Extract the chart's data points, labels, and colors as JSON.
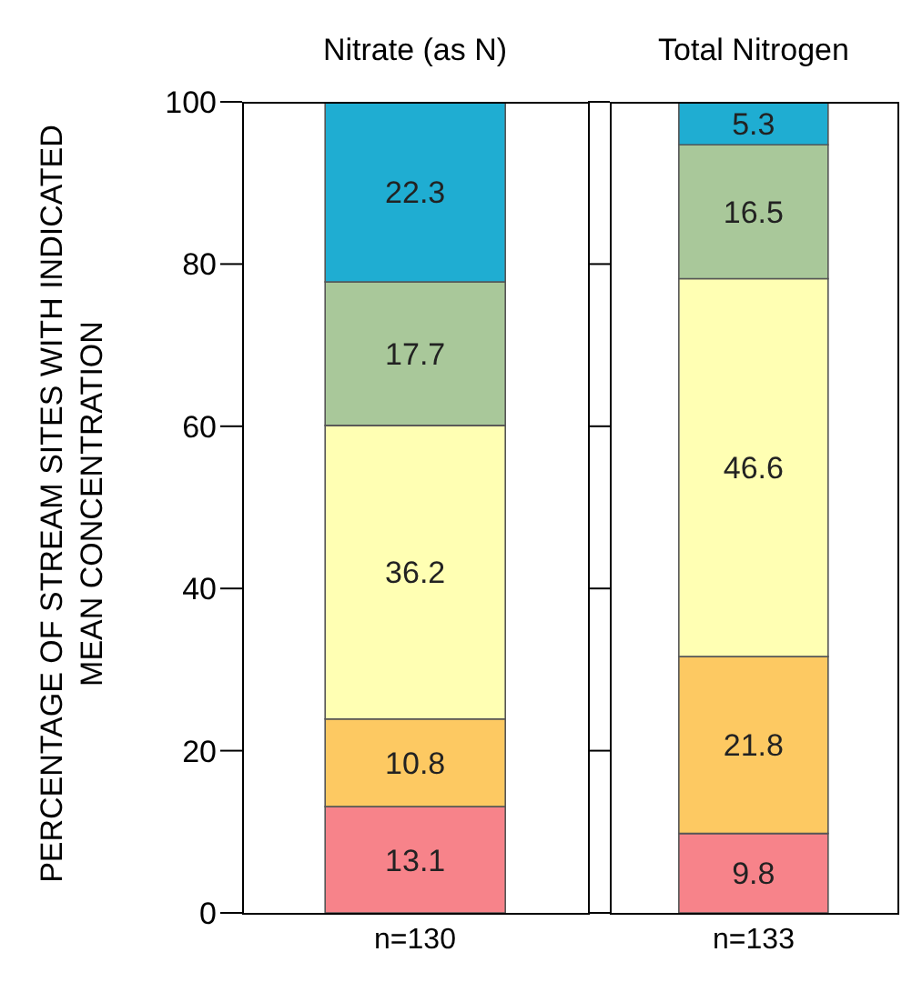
{
  "chart_data": [
    {
      "type": "bar",
      "title": "Nitrate (as N)",
      "ylabel": "PERCENTAGE OF STREAM SITES WITH INDICATED MEAN CONCENTRATION",
      "categories": [
        "n=130"
      ],
      "stacked": true,
      "data_labels": true,
      "legend": false,
      "grid": false,
      "ylim": [
        0,
        100
      ],
      "yticks": [
        0,
        20,
        40,
        60,
        80,
        100
      ],
      "series": [
        {
          "color": "#f7838a",
          "values": [
            13.1
          ]
        },
        {
          "color": "#fdc962",
          "values": [
            10.8
          ]
        },
        {
          "color": "#ffffb3",
          "values": [
            36.2
          ]
        },
        {
          "color": "#a9c89a",
          "values": [
            17.7
          ]
        },
        {
          "color": "#1fadd2",
          "values": [
            22.3
          ]
        }
      ]
    },
    {
      "type": "bar",
      "title": "Total Nitrogen",
      "categories": [
        "n=133"
      ],
      "stacked": true,
      "data_labels": true,
      "legend": false,
      "grid": false,
      "tick_labels": "x",
      "ylim": [
        0,
        100
      ],
      "yticks": [
        0,
        20,
        40,
        60,
        80,
        100
      ],
      "series": [
        {
          "color": "#f7838a",
          "values": [
            9.8
          ]
        },
        {
          "color": "#fdc962",
          "values": [
            21.8
          ]
        },
        {
          "color": "#ffffb3",
          "values": [
            46.6
          ]
        },
        {
          "color": "#a9c89a",
          "values": [
            16.5
          ]
        },
        {
          "color": "#1fadd2",
          "values": [
            5.3
          ]
        }
      ]
    }
  ]
}
